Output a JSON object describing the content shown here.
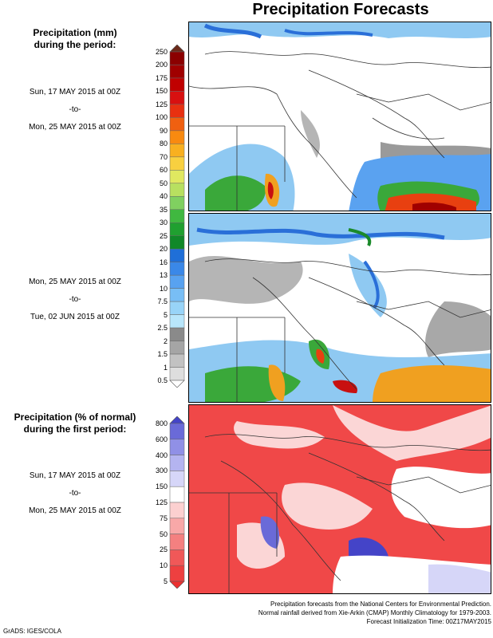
{
  "title": "Precipitation Forecasts",
  "sections": [
    {
      "heading": [
        "Precipitation (mm)",
        "during the period:"
      ],
      "periods": [
        {
          "start": "Sun, 17 MAY 2015 at 00Z",
          "sep": "-to-",
          "end": "Mon, 25 MAY 2015 at 00Z"
        },
        {
          "start": "Mon, 25 MAY 2015 at 00Z",
          "sep": "-to-",
          "end": "Tue, 02 JUN 2015 at 00Z"
        }
      ]
    },
    {
      "heading": [
        "Precipitation (% of normal)",
        "during the first period:"
      ],
      "periods": [
        {
          "start": "Sun, 17 MAY 2015 at 00Z",
          "sep": "-to-",
          "end": "Mon, 25 MAY 2015 at 00Z"
        }
      ]
    }
  ],
  "mm_scale": {
    "ticks": [
      "250",
      "200",
      "175",
      "150",
      "125",
      "100",
      "90",
      "80",
      "70",
      "60",
      "50",
      "40",
      "35",
      "30",
      "25",
      "20",
      "16",
      "13",
      "10",
      "7.5",
      "5",
      "2.5",
      "2",
      "1.5",
      "1",
      "0.5"
    ],
    "colors": [
      "#6b2a1a",
      "#8b0000",
      "#a00000",
      "#c00000",
      "#d81010",
      "#e83010",
      "#f06010",
      "#f88a10",
      "#f8b020",
      "#f8d040",
      "#e0e860",
      "#b8e060",
      "#80d060",
      "#40b840",
      "#20a030",
      "#108828",
      "#1f6fd8",
      "#3a88e8",
      "#58a2f0",
      "#78bef5",
      "#98d4f8",
      "#b8e6fb",
      "#8a8a8a",
      "#a5a5a5",
      "#c2c2c2",
      "#dedede",
      "#ffffff"
    ]
  },
  "pct_scale": {
    "ticks": [
      "800",
      "600",
      "400",
      "300",
      "150",
      "125",
      "75",
      "50",
      "25",
      "10",
      "5"
    ],
    "colors": [
      "#4444c8",
      "#6a6ad8",
      "#9090e6",
      "#b4b4f0",
      "#d6d6f8",
      "#ffffff",
      "#fcd0d0",
      "#f8a8a8",
      "#f48080",
      "#f05858",
      "#ee4040",
      "#ec3030"
    ]
  },
  "footer": [
    "Precipitation forecasts from the National Centers for Environmental Prediction.",
    "Normal rainfall derived from Xie-Arkin (CMAP) Monthly Climatology for 1979-2003.",
    "Forecast Initialization Time: 00Z17MAY2015"
  ],
  "credit": "GrADS: IGES/COLA"
}
